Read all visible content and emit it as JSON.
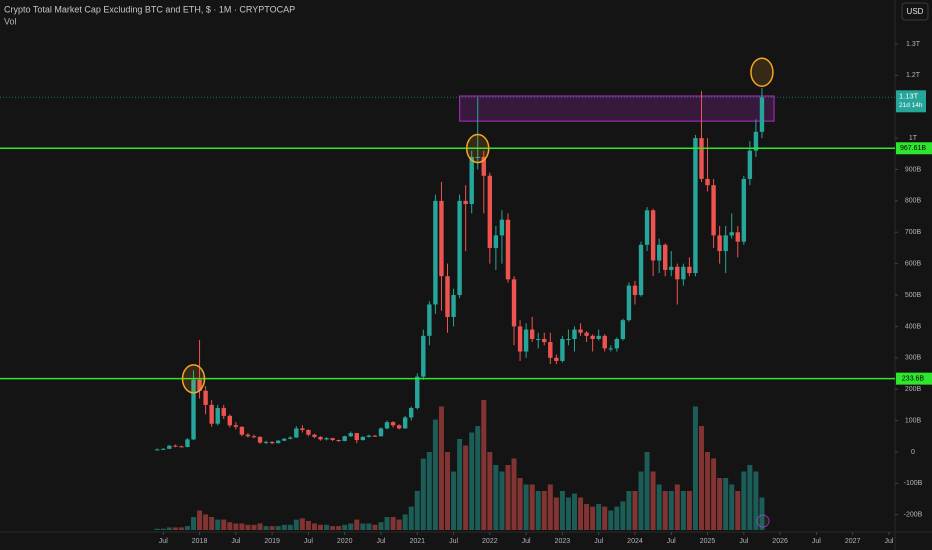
{
  "chart_data": {
    "type": "candlestick",
    "title": "Crypto Total Market Cap Excluding BTC and ETH, $ · 1M · CRYPTOCAP",
    "subtitle": "Vol",
    "currency": "USD",
    "up_color": "#26a69a",
    "down_color": "#ef5350",
    "grid": false,
    "xlim": [
      "2015-04",
      "2027-08"
    ],
    "xticks": [
      {
        "value": "2017-07",
        "label": "Jul"
      },
      {
        "value": "2018-01",
        "label": "2018"
      },
      {
        "value": "2018-07",
        "label": "Jul"
      },
      {
        "value": "2019-01",
        "label": "2019"
      },
      {
        "value": "2019-07",
        "label": "Jul"
      },
      {
        "value": "2020-01",
        "label": "2020"
      },
      {
        "value": "2020-07",
        "label": "Jul"
      },
      {
        "value": "2021-01",
        "label": "2021"
      },
      {
        "value": "2021-07",
        "label": "Jul"
      },
      {
        "value": "2022-01",
        "label": "2022"
      },
      {
        "value": "2022-07",
        "label": "Jul"
      },
      {
        "value": "2023-01",
        "label": "2023"
      },
      {
        "value": "2023-07",
        "label": "Jul"
      },
      {
        "value": "2024-01",
        "label": "2024"
      },
      {
        "value": "2024-07",
        "label": "Jul"
      },
      {
        "value": "2025-01",
        "label": "2025"
      },
      {
        "value": "2025-07",
        "label": "Jul"
      },
      {
        "value": "2026-01",
        "label": "2026"
      },
      {
        "value": "2026-07",
        "label": "Jul"
      },
      {
        "value": "2027-01",
        "label": "2027"
      },
      {
        "value": "2027-07",
        "label": "Jul"
      }
    ],
    "ylim": [
      -255,
      1440
    ],
    "yticks": [
      {
        "value": 1300,
        "label": "1.3T"
      },
      {
        "value": 1200,
        "label": "1.2T"
      },
      {
        "value": 1000,
        "label": "1T"
      },
      {
        "value": 900,
        "label": "900B"
      },
      {
        "value": 800,
        "label": "800B"
      },
      {
        "value": 700,
        "label": "700B"
      },
      {
        "value": 600,
        "label": "600B"
      },
      {
        "value": 500,
        "label": "500B"
      },
      {
        "value": 400,
        "label": "400B"
      },
      {
        "value": 300,
        "label": "300B"
      },
      {
        "value": 200,
        "label": "200B"
      },
      {
        "value": 100,
        "label": "100B"
      },
      0,
      {
        "value": -100,
        "label": "-100B"
      },
      {
        "value": -200,
        "label": "-200B"
      }
    ],
    "x": [
      "2017-06",
      "2017-07",
      "2017-08",
      "2017-09",
      "2017-10",
      "2017-11",
      "2017-12",
      "2018-01",
      "2018-02",
      "2018-03",
      "2018-04",
      "2018-05",
      "2018-06",
      "2018-07",
      "2018-08",
      "2018-09",
      "2018-10",
      "2018-11",
      "2018-12",
      "2019-01",
      "2019-02",
      "2019-03",
      "2019-04",
      "2019-05",
      "2019-06",
      "2019-07",
      "2019-08",
      "2019-09",
      "2019-10",
      "2019-11",
      "2019-12",
      "2020-01",
      "2020-02",
      "2020-03",
      "2020-04",
      "2020-05",
      "2020-06",
      "2020-07",
      "2020-08",
      "2020-09",
      "2020-10",
      "2020-11",
      "2020-12",
      "2021-01",
      "2021-02",
      "2021-03",
      "2021-04",
      "2021-05",
      "2021-06",
      "2021-07",
      "2021-08",
      "2021-09",
      "2021-10",
      "2021-11",
      "2021-12",
      "2022-01",
      "2022-02",
      "2022-03",
      "2022-04",
      "2022-05",
      "2022-06",
      "2022-07",
      "2022-08",
      "2022-09",
      "2022-10",
      "2022-11",
      "2022-12",
      "2023-01",
      "2023-02",
      "2023-03",
      "2023-04",
      "2023-05",
      "2023-06",
      "2023-07",
      "2023-08",
      "2023-09",
      "2023-10",
      "2023-11",
      "2023-12",
      "2024-01",
      "2024-02",
      "2024-03",
      "2024-04",
      "2024-05",
      "2024-06",
      "2024-07",
      "2024-08",
      "2024-09",
      "2024-10",
      "2024-11",
      "2024-12",
      "2025-01",
      "2025-02",
      "2025-03",
      "2025-04",
      "2025-05",
      "2025-06",
      "2025-07",
      "2025-08",
      "2025-09",
      "2025-10"
    ],
    "ohlc": [
      [
        6,
        11,
        5,
        8
      ],
      [
        8,
        12,
        7,
        10
      ],
      [
        10,
        22,
        9,
        20
      ],
      [
        20,
        24,
        15,
        18
      ],
      [
        18,
        20,
        14,
        16
      ],
      [
        16,
        44,
        15,
        40
      ],
      [
        40,
        260,
        38,
        230
      ],
      [
        230,
        357,
        170,
        195
      ],
      [
        195,
        210,
        120,
        150
      ],
      [
        150,
        165,
        80,
        90
      ],
      [
        90,
        150,
        85,
        140
      ],
      [
        140,
        150,
        105,
        115
      ],
      [
        115,
        120,
        78,
        85
      ],
      [
        85,
        95,
        72,
        80
      ],
      [
        80,
        82,
        50,
        55
      ],
      [
        55,
        60,
        46,
        50
      ],
      [
        50,
        55,
        44,
        48
      ],
      [
        48,
        50,
        26,
        30
      ],
      [
        30,
        36,
        25,
        32
      ],
      [
        32,
        34,
        25,
        28
      ],
      [
        28,
        38,
        27,
        36
      ],
      [
        36,
        44,
        34,
        42
      ],
      [
        42,
        50,
        40,
        46
      ],
      [
        46,
        82,
        45,
        75
      ],
      [
        75,
        85,
        62,
        70
      ],
      [
        70,
        72,
        50,
        55
      ],
      [
        55,
        58,
        44,
        48
      ],
      [
        48,
        50,
        36,
        40
      ],
      [
        40,
        47,
        37,
        44
      ],
      [
        44,
        45,
        35,
        38
      ],
      [
        38,
        39,
        32,
        35
      ],
      [
        35,
        52,
        34,
        50
      ],
      [
        50,
        65,
        48,
        60
      ],
      [
        60,
        61,
        28,
        38
      ],
      [
        38,
        50,
        36,
        48
      ],
      [
        48,
        55,
        46,
        52
      ],
      [
        52,
        54,
        48,
        50
      ],
      [
        50,
        78,
        49,
        75
      ],
      [
        75,
        100,
        72,
        95
      ],
      [
        95,
        98,
        78,
        85
      ],
      [
        85,
        88,
        72,
        75
      ],
      [
        75,
        115,
        74,
        110
      ],
      [
        110,
        145,
        100,
        140
      ],
      [
        140,
        250,
        135,
        240
      ],
      [
        240,
        390,
        230,
        370
      ],
      [
        370,
        480,
        340,
        470
      ],
      [
        470,
        820,
        440,
        800
      ],
      [
        800,
        860,
        450,
        560
      ],
      [
        560,
        600,
        380,
        430
      ],
      [
        430,
        520,
        400,
        500
      ],
      [
        500,
        820,
        490,
        800
      ],
      [
        800,
        850,
        640,
        790
      ],
      [
        790,
        960,
        760,
        940
      ],
      [
        940,
        1130,
        900,
        940
      ],
      [
        940,
        960,
        760,
        880
      ],
      [
        880,
        890,
        600,
        650
      ],
      [
        650,
        720,
        580,
        690
      ],
      [
        690,
        770,
        600,
        740
      ],
      [
        740,
        760,
        540,
        550
      ],
      [
        550,
        560,
        340,
        400
      ],
      [
        400,
        420,
        290,
        320
      ],
      [
        320,
        410,
        300,
        390
      ],
      [
        390,
        430,
        350,
        360
      ],
      [
        360,
        380,
        330,
        360
      ],
      [
        360,
        380,
        340,
        350
      ],
      [
        350,
        380,
        280,
        300
      ],
      [
        300,
        310,
        280,
        290
      ],
      [
        290,
        370,
        285,
        360
      ],
      [
        360,
        390,
        340,
        360
      ],
      [
        360,
        400,
        320,
        390
      ],
      [
        390,
        410,
        370,
        380
      ],
      [
        380,
        385,
        350,
        370
      ],
      [
        370,
        375,
        320,
        360
      ],
      [
        360,
        390,
        355,
        370
      ],
      [
        370,
        375,
        320,
        330
      ],
      [
        330,
        340,
        320,
        330
      ],
      [
        330,
        365,
        320,
        360
      ],
      [
        360,
        425,
        355,
        420
      ],
      [
        420,
        540,
        415,
        530
      ],
      [
        530,
        545,
        470,
        500
      ],
      [
        500,
        670,
        495,
        660
      ],
      [
        660,
        780,
        640,
        770
      ],
      [
        770,
        775,
        560,
        610
      ],
      [
        610,
        680,
        570,
        660
      ],
      [
        660,
        665,
        560,
        580
      ],
      [
        580,
        640,
        560,
        590
      ],
      [
        590,
        600,
        470,
        550
      ],
      [
        550,
        600,
        530,
        590
      ],
      [
        590,
        620,
        560,
        570
      ],
      [
        570,
        1010,
        560,
        1000
      ],
      [
        1000,
        1150,
        860,
        870
      ],
      [
        870,
        1000,
        830,
        850
      ],
      [
        850,
        870,
        650,
        690
      ],
      [
        690,
        720,
        600,
        640
      ],
      [
        640,
        720,
        570,
        690
      ],
      [
        690,
        760,
        680,
        700
      ],
      [
        700,
        720,
        620,
        670
      ],
      [
        670,
        880,
        660,
        870
      ],
      [
        870,
        990,
        850,
        960
      ],
      [
        960,
        1060,
        940,
        1020
      ],
      [
        1020,
        1160,
        1000,
        1130
      ]
    ],
    "volume": [
      1,
      1,
      2,
      2,
      2,
      3,
      10,
      15,
      12,
      10,
      8,
      8,
      6,
      5,
      5,
      4,
      4,
      5,
      3,
      3,
      3,
      4,
      4,
      8,
      9,
      7,
      5,
      4,
      4,
      3,
      3,
      4,
      5,
      8,
      5,
      5,
      4,
      6,
      10,
      10,
      8,
      12,
      18,
      30,
      55,
      60,
      85,
      95,
      60,
      45,
      70,
      65,
      75,
      80,
      100,
      60,
      50,
      45,
      50,
      55,
      40,
      35,
      35,
      30,
      30,
      35,
      25,
      30,
      25,
      28,
      25,
      20,
      18,
      20,
      18,
      15,
      18,
      22,
      30,
      30,
      45,
      60,
      45,
      35,
      30,
      30,
      35,
      30,
      30,
      95,
      80,
      60,
      55,
      40,
      40,
      35,
      30,
      45,
      50,
      45,
      25
    ],
    "levels": [
      {
        "value": 967.61,
        "label": "967.61B",
        "color": "#2ee62e"
      },
      {
        "value": 233.6,
        "label": "233.6B",
        "color": "#2ee62e"
      }
    ],
    "zone": {
      "from": "2021-08",
      "to": "2025-12",
      "low": 1054,
      "high": 1134,
      "color": "#9c27b0"
    },
    "circles": [
      {
        "x": "2017-12",
        "value": 233,
        "color": "#f5a623"
      },
      {
        "x": "2021-11",
        "value": 967,
        "color": "#f5a623"
      },
      {
        "x": "2025-10",
        "value": 1210,
        "color": "#f5a623"
      }
    ],
    "last_price": {
      "value": 1130,
      "label": "1.13T",
      "countdown": "21d 14h"
    }
  }
}
